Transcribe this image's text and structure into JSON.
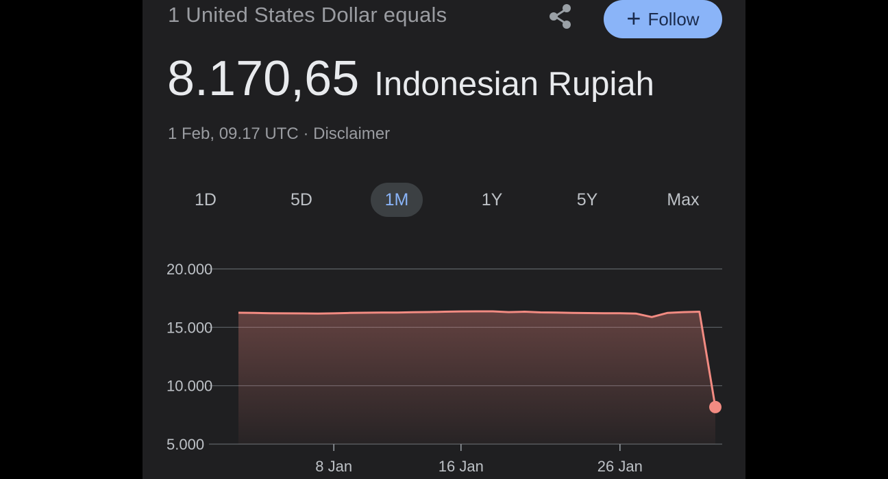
{
  "header": {
    "subtitle": "1 United States Dollar equals",
    "rate_value": "8.170,65",
    "rate_currency": "Indonesian Rupiah",
    "timestamp": "1 Feb, 09.17 UTC",
    "separator": "·",
    "disclaimer": "Disclaimer",
    "share_icon": "share-icon",
    "follow_icon": "plus",
    "follow_label": "Follow",
    "follow_color": "#8ab4f8"
  },
  "ranges": {
    "items": [
      "1D",
      "5D",
      "1M",
      "1Y",
      "5Y",
      "Max"
    ],
    "active": "1M",
    "active_color": "#8ab4f8"
  },
  "chart_data": {
    "type": "area",
    "title": "",
    "xlabel": "",
    "ylabel": "",
    "ylim": [
      5000,
      20000
    ],
    "yticks": [
      "20.000",
      "15.000",
      "10.000",
      "5.000"
    ],
    "xticks": [
      "8 Jan",
      "16 Jan",
      "26 Jan"
    ],
    "grid": true,
    "line_color": "#f28b82",
    "x": [
      "2 Jan",
      "3 Jan",
      "4 Jan",
      "5 Jan",
      "6 Jan",
      "7 Jan",
      "8 Jan",
      "9 Jan",
      "10 Jan",
      "11 Jan",
      "12 Jan",
      "13 Jan",
      "14 Jan",
      "15 Jan",
      "16 Jan",
      "17 Jan",
      "18 Jan",
      "19 Jan",
      "20 Jan",
      "21 Jan",
      "22 Jan",
      "23 Jan",
      "24 Jan",
      "25 Jan",
      "26 Jan",
      "27 Jan",
      "28 Jan",
      "29 Jan",
      "30 Jan",
      "31 Jan",
      "1 Feb"
    ],
    "series": [
      {
        "values": [
          16250,
          16230,
          16210,
          16200,
          16190,
          16180,
          16200,
          16230,
          16250,
          16260,
          16270,
          16290,
          16310,
          16340,
          16360,
          16370,
          16370,
          16300,
          16340,
          16280,
          16260,
          16230,
          16220,
          16210,
          16210,
          16180,
          15880,
          16240,
          16300,
          16340,
          8170.65
        ]
      }
    ]
  }
}
